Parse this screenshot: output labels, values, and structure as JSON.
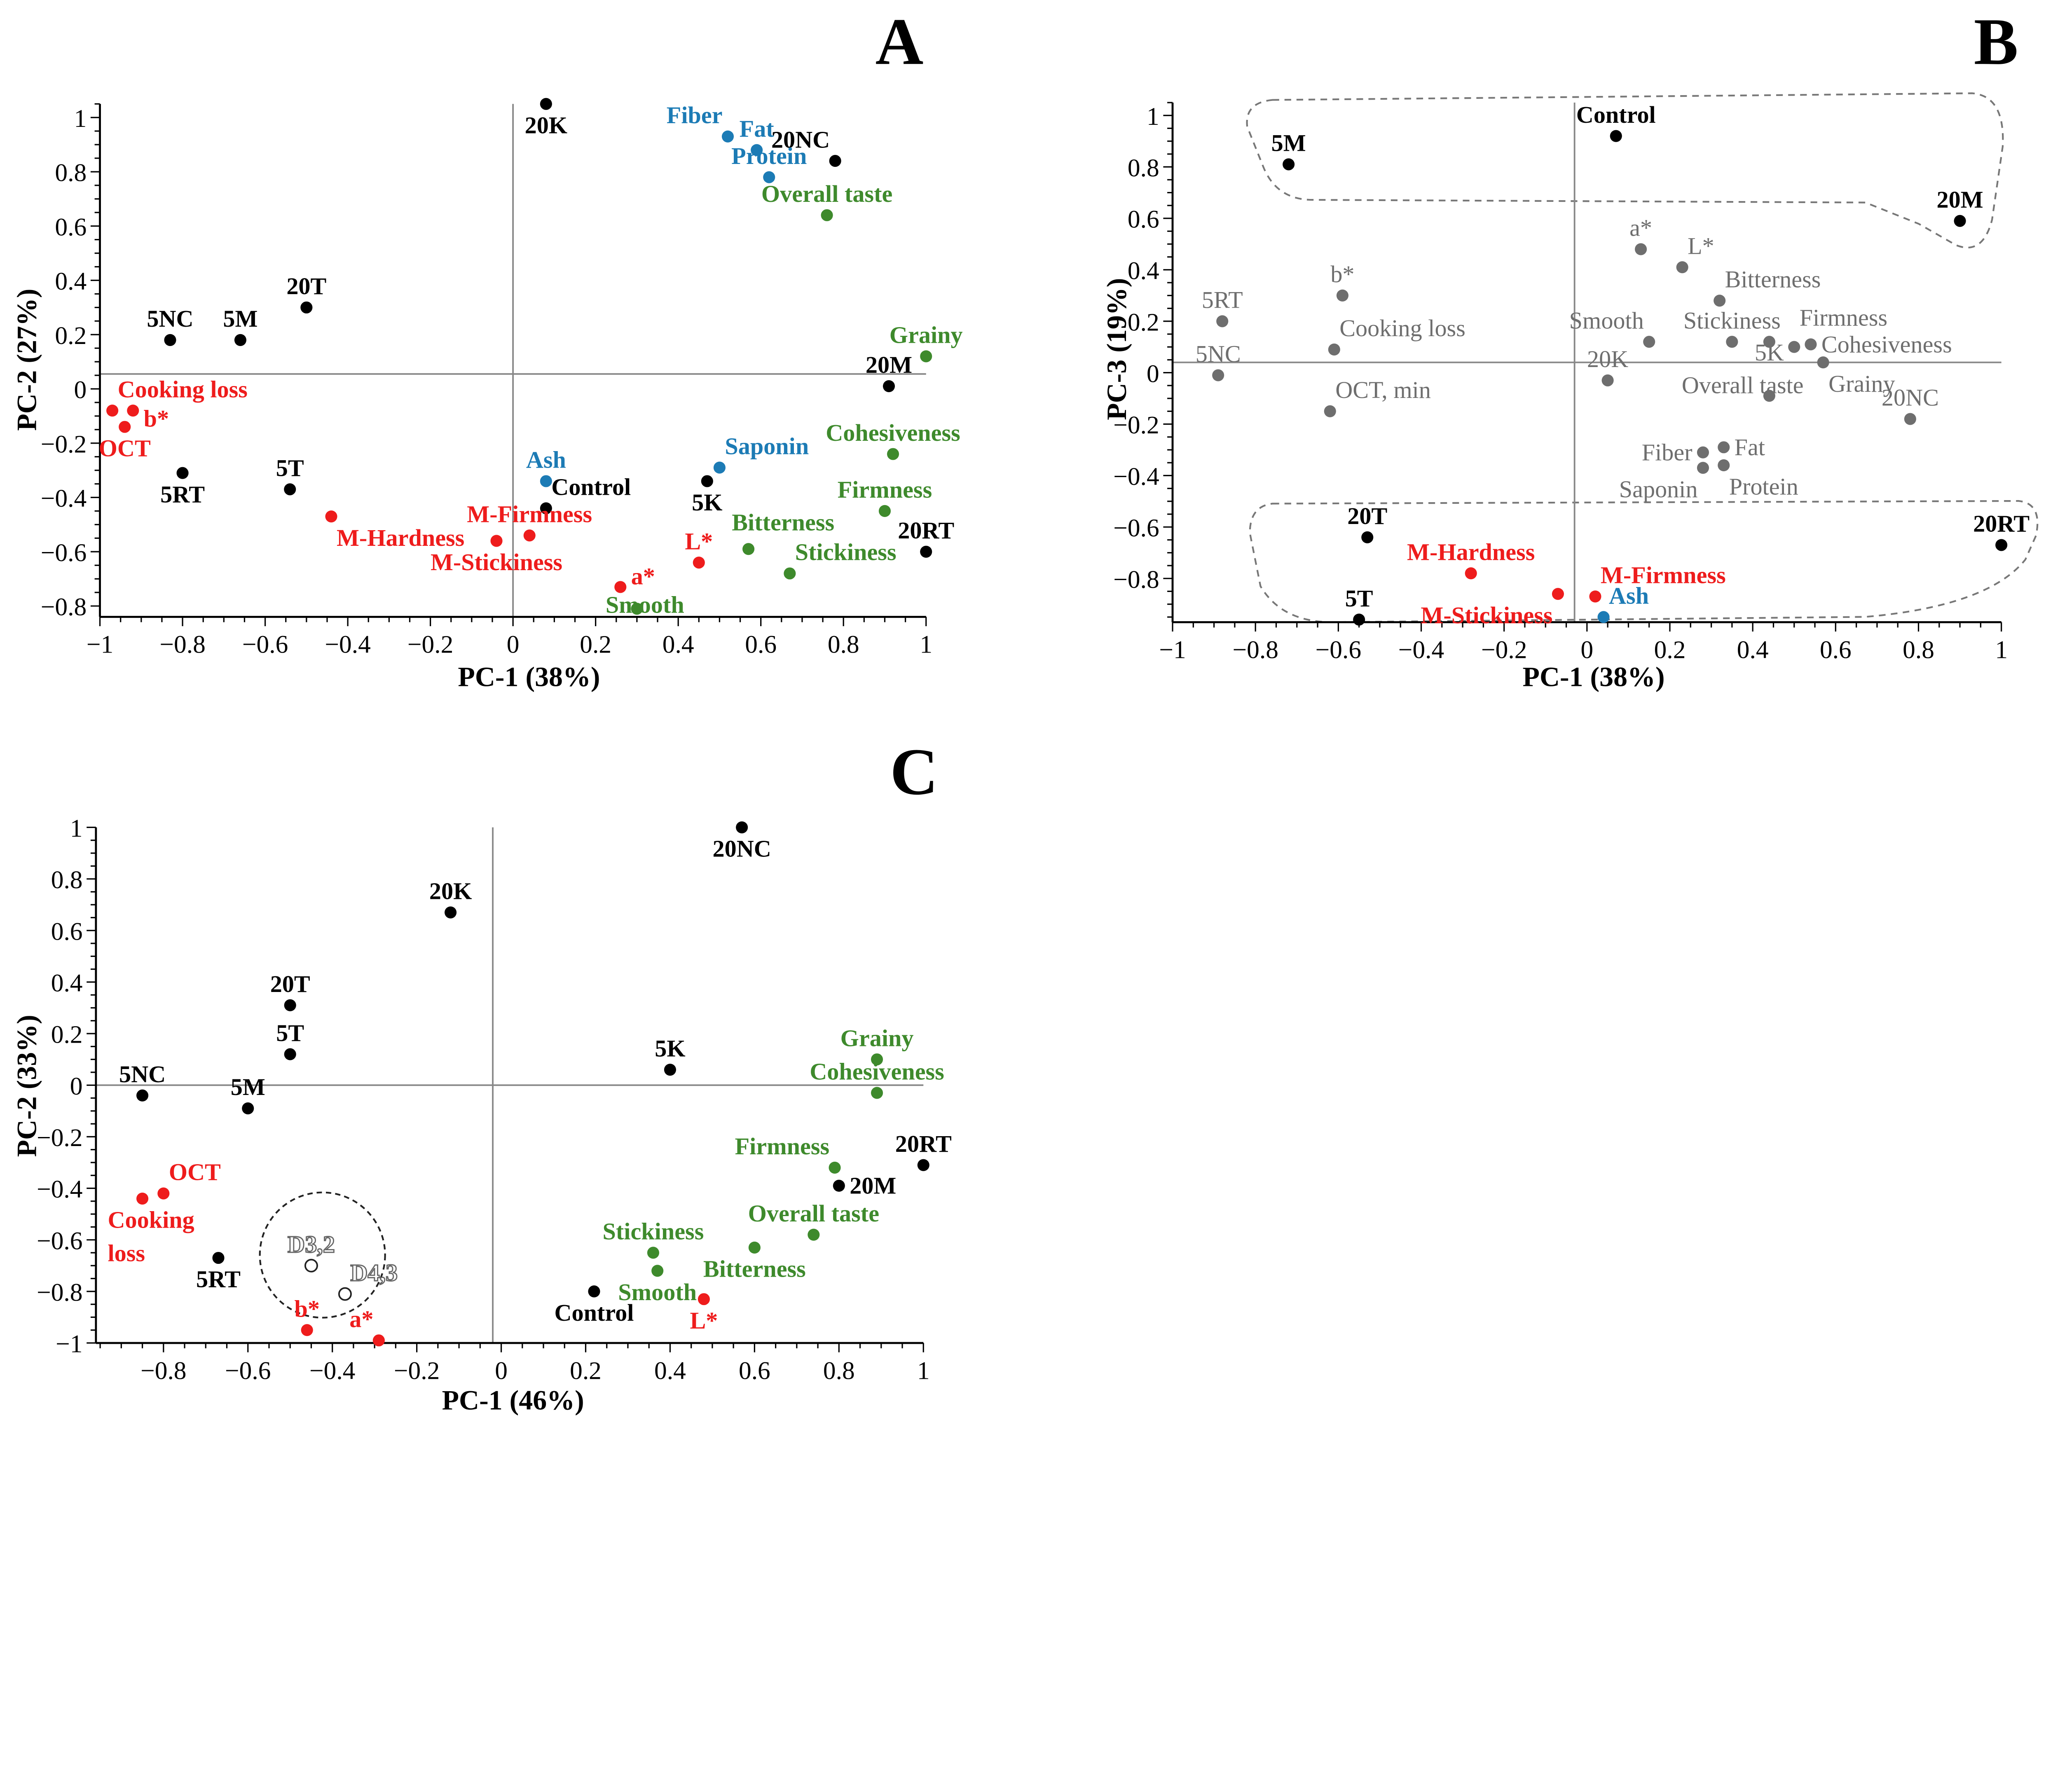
{
  "colors": {
    "k": "#000000",
    "r": "#ee1c1c",
    "b": "#1c7bb5",
    "g": "#3e8a2c",
    "gray": "#6e6e6e",
    "hollow": "#555555"
  },
  "chart_data": [
    {
      "panel": "A",
      "type": "scatter",
      "xlabel": "PC-1 (38%)",
      "ylabel": "PC-2 (27%)",
      "xlim": [
        -1,
        1
      ],
      "ylim": [
        -0.84,
        1.05
      ],
      "xticks": [
        "−1",
        "−0.8",
        "−0.6",
        "−0.4",
        "−0.2",
        "0",
        "0.2",
        "0.4",
        "0.6",
        "0.8",
        "1"
      ],
      "yticks": [
        "1",
        "0.8",
        "0.6",
        "0.4",
        "0.2",
        "0",
        "−0.2",
        "−0.4",
        "−0.6",
        "−0.8"
      ],
      "ref_lines": {
        "x": 0,
        "y": 0.055
      },
      "points": [
        {
          "label": "20K",
          "x": 0.08,
          "y": 1.05,
          "c": "k",
          "pos": "s"
        },
        {
          "label": "20NC",
          "x": 0.78,
          "y": 0.84,
          "c": "k",
          "pos": "nw"
        },
        {
          "label": "5NC",
          "x": -0.83,
          "y": 0.18,
          "c": "k",
          "pos": "n"
        },
        {
          "label": "5M",
          "x": -0.66,
          "y": 0.18,
          "c": "k",
          "pos": "n"
        },
        {
          "label": "20T",
          "x": -0.5,
          "y": 0.3,
          "c": "k",
          "pos": "n"
        },
        {
          "label": "20M",
          "x": 0.91,
          "y": 0.01,
          "c": "k",
          "pos": "n"
        },
        {
          "label": "5RT",
          "x": -0.8,
          "y": -0.31,
          "c": "k",
          "pos": "s"
        },
        {
          "label": "5T",
          "x": -0.54,
          "y": -0.37,
          "c": "k",
          "pos": "n"
        },
        {
          "label": "Control",
          "x": 0.08,
          "y": -0.44,
          "c": "k",
          "pos": "ne"
        },
        {
          "label": "5K",
          "x": 0.47,
          "y": -0.34,
          "c": "k",
          "pos": "s"
        },
        {
          "label": "20RT",
          "x": 1.0,
          "y": -0.6,
          "c": "k",
          "pos": "n"
        },
        {
          "label": "Fiber",
          "x": 0.52,
          "y": 0.93,
          "c": "b",
          "pos": "nw"
        },
        {
          "label": "Fat",
          "x": 0.59,
          "y": 0.88,
          "c": "b",
          "pos": "n"
        },
        {
          "label": "Protein",
          "x": 0.62,
          "y": 0.78,
          "c": "b",
          "pos": "n"
        },
        {
          "label": "Ash",
          "x": 0.08,
          "y": -0.34,
          "c": "b",
          "pos": "n"
        },
        {
          "label": "Saponin",
          "x": 0.5,
          "y": -0.29,
          "c": "b",
          "pos": "ne"
        },
        {
          "label": "Overall taste",
          "x": 0.76,
          "y": 0.64,
          "c": "g",
          "pos": "n"
        },
        {
          "label": "Grainy",
          "x": 1.0,
          "y": 0.12,
          "c": "g",
          "pos": "n"
        },
        {
          "label": "Cohesiveness",
          "x": 0.92,
          "y": -0.24,
          "c": "g",
          "pos": "n"
        },
        {
          "label": "Firmness",
          "x": 0.9,
          "y": -0.45,
          "c": "g",
          "pos": "n"
        },
        {
          "label": "Bitterness",
          "x": 0.57,
          "y": -0.59,
          "c": "g",
          "pos": "n"
        },
        {
          "label": "Stickiness",
          "x": 0.67,
          "y": -0.68,
          "c": "g",
          "pos": "ne"
        },
        {
          "label": "Smooth",
          "x": 0.3,
          "y": -0.81,
          "c": "g",
          "pos": "c"
        },
        {
          "label": "Cooking loss",
          "x": -0.97,
          "y": -0.08,
          "c": "r",
          "pos": "ne"
        },
        {
          "label": "b*",
          "x": -0.92,
          "y": -0.08,
          "c": "r",
          "pos": "e"
        },
        {
          "label": "OCT",
          "x": -0.94,
          "y": -0.14,
          "c": "r",
          "pos": "s"
        },
        {
          "label": "M-Hardness",
          "x": -0.44,
          "y": -0.47,
          "c": "r",
          "pos": "se"
        },
        {
          "label": "M-Stickiness",
          "x": -0.04,
          "y": -0.56,
          "c": "r",
          "pos": "s"
        },
        {
          "label": "M-Firmness",
          "x": 0.04,
          "y": -0.54,
          "c": "r",
          "pos": "n"
        },
        {
          "label": "L*",
          "x": 0.45,
          "y": -0.64,
          "c": "r",
          "pos": "n"
        },
        {
          "label": "a*",
          "x": 0.26,
          "y": -0.73,
          "c": "r",
          "pos": "e"
        }
      ]
    },
    {
      "panel": "B",
      "type": "scatter",
      "xlabel": "PC-1 (38%)",
      "ylabel": "PC-3 (19%)",
      "xlim": [
        -1,
        1
      ],
      "ylim": [
        -0.97,
        1.05
      ],
      "xticks": [
        "−1",
        "−0.8",
        "−0.6",
        "−0.4",
        "−0.2",
        "0",
        "0.2",
        "0.4",
        "0.6",
        "0.8",
        "1"
      ],
      "yticks": [
        "1",
        "0.8",
        "0.6",
        "0.4",
        "0.2",
        "0",
        "−0.2",
        "−0.4",
        "−0.6",
        "−0.8"
      ],
      "ref_lines": {
        "x": -0.03,
        "y": 0.04
      },
      "points": [
        {
          "label": "5M",
          "x": -0.72,
          "y": 0.81,
          "c": "k",
          "pos": "n"
        },
        {
          "label": "Control",
          "x": 0.07,
          "y": 0.92,
          "c": "k",
          "pos": "n"
        },
        {
          "label": "20M",
          "x": 0.9,
          "y": 0.59,
          "c": "k",
          "pos": "n"
        },
        {
          "label": "5RT",
          "x": -0.88,
          "y": 0.2,
          "c": "gray",
          "pos": "n"
        },
        {
          "label": "5NC",
          "x": -0.89,
          "y": -0.01,
          "c": "gray",
          "pos": "n"
        },
        {
          "label": "b*",
          "x": -0.59,
          "y": 0.3,
          "c": "gray",
          "pos": "n"
        },
        {
          "label": "Cooking loss",
          "x": -0.61,
          "y": 0.09,
          "c": "gray",
          "pos": "ne"
        },
        {
          "label": "OCT, min",
          "x": -0.62,
          "y": -0.15,
          "c": "gray",
          "pos": "ne"
        },
        {
          "label": "a*",
          "x": 0.13,
          "y": 0.48,
          "c": "gray",
          "pos": "n"
        },
        {
          "label": "L*",
          "x": 0.23,
          "y": 0.41,
          "c": "gray",
          "pos": "ne"
        },
        {
          "label": "Bitterness",
          "x": 0.32,
          "y": 0.28,
          "c": "gray",
          "pos": "ne"
        },
        {
          "label": "Smooth",
          "x": 0.15,
          "y": 0.12,
          "c": "gray",
          "pos": "nw"
        },
        {
          "label": "Stickiness",
          "x": 0.35,
          "y": 0.12,
          "c": "gray",
          "pos": "n"
        },
        {
          "label": "5K",
          "x": 0.44,
          "y": 0.12,
          "c": "gray",
          "pos": "s"
        },
        {
          "label": "Firmness",
          "x": 0.5,
          "y": 0.1,
          "c": "gray",
          "pos": "ne"
        },
        {
          "label": "Cohesiveness",
          "x": 0.54,
          "y": 0.11,
          "c": "gray",
          "pos": "e"
        },
        {
          "label": "Grainy",
          "x": 0.57,
          "y": 0.04,
          "c": "gray",
          "pos": "se"
        },
        {
          "label": "20K",
          "x": 0.05,
          "y": -0.03,
          "c": "gray",
          "pos": "n"
        },
        {
          "label": "Overall taste",
          "x": 0.44,
          "y": -0.09,
          "c": "gray",
          "pos": "n"
        },
        {
          "label": "20NC",
          "x": 0.78,
          "y": -0.18,
          "c": "gray",
          "pos": "n"
        },
        {
          "label": "Fiber",
          "x": 0.28,
          "y": -0.31,
          "c": "gray",
          "pos": "w"
        },
        {
          "label": "Fat",
          "x": 0.33,
          "y": -0.29,
          "c": "gray",
          "pos": "e"
        },
        {
          "label": "Saponin",
          "x": 0.28,
          "y": -0.37,
          "c": "gray",
          "pos": "sw"
        },
        {
          "label": "Protein",
          "x": 0.33,
          "y": -0.36,
          "c": "gray",
          "pos": "se"
        },
        {
          "label": "20T",
          "x": -0.53,
          "y": -0.64,
          "c": "k",
          "pos": "n"
        },
        {
          "label": "20RT",
          "x": 1.0,
          "y": -0.67,
          "c": "k",
          "pos": "n"
        },
        {
          "label": "M-Hardness",
          "x": -0.28,
          "y": -0.78,
          "c": "r",
          "pos": "n"
        },
        {
          "label": "M-Stickiness",
          "x": -0.07,
          "y": -0.86,
          "c": "r",
          "pos": "sw"
        },
        {
          "label": "M-Firmness",
          "x": 0.02,
          "y": -0.87,
          "c": "r",
          "pos": "ne"
        },
        {
          "label": "Ash",
          "x": 0.04,
          "y": -0.95,
          "c": "b",
          "pos": "ne"
        },
        {
          "label": "5T",
          "x": -0.55,
          "y": -0.96,
          "c": "k",
          "pos": "n"
        }
      ]
    },
    {
      "panel": "C",
      "type": "scatter",
      "xlabel": "PC-1 (46%)",
      "ylabel": "PC-2 (33%)",
      "xlim": [
        -0.96,
        1
      ],
      "ylim": [
        -1,
        1
      ],
      "xticks": [
        "−0.8",
        "−0.6",
        "−0.4",
        "−0.2",
        "0",
        "0.2",
        "0.4",
        "0.6",
        "0.8",
        "1"
      ],
      "yticks": [
        "1",
        "0.8",
        "0.6",
        "0.4",
        "0.2",
        "0",
        "−0.2",
        "−0.4",
        "−0.6",
        "−0.8",
        "−1"
      ],
      "ref_lines": {
        "x": -0.02,
        "y": 0
      },
      "points": [
        {
          "label": "20NC",
          "x": 0.57,
          "y": 1.0,
          "c": "k",
          "pos": "s"
        },
        {
          "label": "20K",
          "x": -0.12,
          "y": 0.67,
          "c": "k",
          "pos": "n"
        },
        {
          "label": "20T",
          "x": -0.5,
          "y": 0.31,
          "c": "k",
          "pos": "n"
        },
        {
          "label": "5T",
          "x": -0.5,
          "y": 0.12,
          "c": "k",
          "pos": "n"
        },
        {
          "label": "5NC",
          "x": -0.85,
          "y": -0.04,
          "c": "k",
          "pos": "n"
        },
        {
          "label": "5M",
          "x": -0.6,
          "y": -0.09,
          "c": "k",
          "pos": "n"
        },
        {
          "label": "5K",
          "x": 0.4,
          "y": 0.06,
          "c": "k",
          "pos": "n"
        },
        {
          "label": "20RT",
          "x": 1.0,
          "y": -0.31,
          "c": "k",
          "pos": "n"
        },
        {
          "label": "20M",
          "x": 0.8,
          "y": -0.39,
          "c": "k",
          "pos": "e"
        },
        {
          "label": "5RT",
          "x": -0.67,
          "y": -0.67,
          "c": "k",
          "pos": "s"
        },
        {
          "label": "Control",
          "x": 0.22,
          "y": -0.8,
          "c": "k",
          "pos": "s"
        },
        {
          "label": "Grainy",
          "x": 0.89,
          "y": 0.1,
          "c": "g",
          "pos": "n"
        },
        {
          "label": "Cohesiveness",
          "x": 0.89,
          "y": -0.03,
          "c": "g",
          "pos": "n"
        },
        {
          "label": "Firmness",
          "x": 0.79,
          "y": -0.32,
          "c": "g",
          "pos": "nw"
        },
        {
          "label": "Overall taste",
          "x": 0.74,
          "y": -0.58,
          "c": "g",
          "pos": "n"
        },
        {
          "label": "Bitterness",
          "x": 0.6,
          "y": -0.63,
          "c": "g",
          "pos": "s"
        },
        {
          "label": "Stickiness",
          "x": 0.36,
          "y": -0.65,
          "c": "g",
          "pos": "n"
        },
        {
          "label": "Smooth",
          "x": 0.37,
          "y": -0.72,
          "c": "g",
          "pos": "s"
        },
        {
          "label": "OCT",
          "x": -0.8,
          "y": -0.42,
          "c": "r",
          "pos": "ne"
        },
        {
          "label": "Cooking loss",
          "x": -0.85,
          "y": -0.44,
          "c": "r",
          "pos": "wrap"
        },
        {
          "label": "b*",
          "x": -0.46,
          "y": -0.95,
          "c": "r",
          "pos": "n"
        },
        {
          "label": "a*",
          "x": -0.29,
          "y": -0.99,
          "c": "r",
          "pos": "nw"
        },
        {
          "label": "L*",
          "x": 0.48,
          "y": -0.83,
          "c": "r",
          "pos": "s"
        },
        {
          "label": "D3,2",
          "x": -0.45,
          "y": -0.7,
          "c": "hollow",
          "pos": "n",
          "hollow": true
        },
        {
          "label": "D4,3",
          "x": -0.37,
          "y": -0.81,
          "c": "hollow",
          "pos": "ne",
          "hollow": true
        }
      ]
    }
  ]
}
